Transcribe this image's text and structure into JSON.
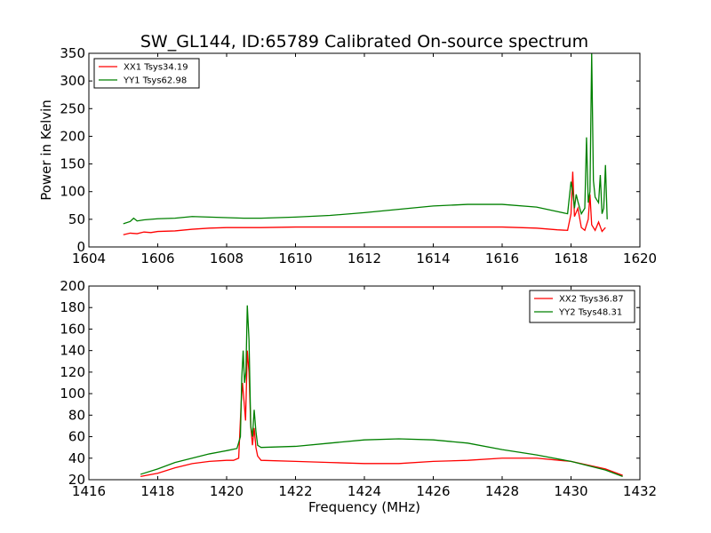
{
  "figure": {
    "title": "SW_GL144, ID:65789 Calibrated On-source spectrum",
    "xlabel": "Frequency (MHz)",
    "ylabel": "Power in Kelvin"
  },
  "chart_data": [
    {
      "type": "line",
      "title": "SW_GL144, ID:65789 Calibrated On-source spectrum",
      "xlabel": "",
      "ylabel": "Power in Kelvin",
      "xlim": [
        1604,
        1620
      ],
      "ylim": [
        0,
        350
      ],
      "xticks": [
        1604,
        1606,
        1608,
        1610,
        1612,
        1614,
        1616,
        1618,
        1620
      ],
      "yticks": [
        0,
        50,
        100,
        150,
        200,
        250,
        300,
        350
      ],
      "grid": false,
      "legend_position": "top-left",
      "series": [
        {
          "name": "XX1 Tsys34.19",
          "color": "#ff0000",
          "points": [
            [
              1605.0,
              22
            ],
            [
              1605.2,
              25
            ],
            [
              1605.4,
              24
            ],
            [
              1605.6,
              27
            ],
            [
              1605.8,
              26
            ],
            [
              1606.0,
              28
            ],
            [
              1606.5,
              29
            ],
            [
              1607.0,
              32
            ],
            [
              1607.5,
              34
            ],
            [
              1608.0,
              35
            ],
            [
              1609.0,
              35
            ],
            [
              1610.0,
              36
            ],
            [
              1611.0,
              36
            ],
            [
              1612.0,
              36
            ],
            [
              1613.0,
              36
            ],
            [
              1614.0,
              36
            ],
            [
              1615.0,
              36
            ],
            [
              1616.0,
              36
            ],
            [
              1617.0,
              34
            ],
            [
              1617.6,
              31
            ],
            [
              1617.9,
              30
            ],
            [
              1618.0,
              60
            ],
            [
              1618.05,
              136
            ],
            [
              1618.1,
              55
            ],
            [
              1618.2,
              70
            ],
            [
              1618.3,
              35
            ],
            [
              1618.4,
              30
            ],
            [
              1618.5,
              50
            ],
            [
              1618.55,
              95
            ],
            [
              1618.6,
              40
            ],
            [
              1618.7,
              30
            ],
            [
              1618.8,
              45
            ],
            [
              1618.9,
              28
            ],
            [
              1619.0,
              35
            ]
          ]
        },
        {
          "name": "YY1 Tsys62.98",
          "color": "#008000",
          "points": [
            [
              1605.0,
              42
            ],
            [
              1605.2,
              46
            ],
            [
              1605.3,
              52
            ],
            [
              1605.4,
              47
            ],
            [
              1605.6,
              49
            ],
            [
              1605.8,
              50
            ],
            [
              1606.0,
              51
            ],
            [
              1606.5,
              52
            ],
            [
              1607.0,
              55
            ],
            [
              1607.5,
              54
            ],
            [
              1608.0,
              53
            ],
            [
              1608.5,
              52
            ],
            [
              1609.0,
              52
            ],
            [
              1610.0,
              54
            ],
            [
              1611.0,
              57
            ],
            [
              1612.0,
              62
            ],
            [
              1613.0,
              68
            ],
            [
              1614.0,
              74
            ],
            [
              1615.0,
              77
            ],
            [
              1616.0,
              77
            ],
            [
              1617.0,
              72
            ],
            [
              1617.6,
              64
            ],
            [
              1617.9,
              60
            ],
            [
              1618.0,
              118
            ],
            [
              1618.05,
              100
            ],
            [
              1618.1,
              70
            ],
            [
              1618.15,
              95
            ],
            [
              1618.2,
              82
            ],
            [
              1618.3,
              60
            ],
            [
              1618.4,
              70
            ],
            [
              1618.45,
              198
            ],
            [
              1618.5,
              80
            ],
            [
              1618.55,
              100
            ],
            [
              1618.6,
              350
            ],
            [
              1618.65,
              120
            ],
            [
              1618.7,
              90
            ],
            [
              1618.8,
              80
            ],
            [
              1618.85,
              130
            ],
            [
              1618.9,
              60
            ],
            [
              1618.95,
              70
            ],
            [
              1619.0,
              148
            ],
            [
              1619.05,
              50
            ]
          ]
        }
      ]
    },
    {
      "type": "line",
      "title": "",
      "xlabel": "Frequency (MHz)",
      "ylabel": "",
      "xlim": [
        1416,
        1432
      ],
      "ylim": [
        20,
        200
      ],
      "xticks": [
        1416,
        1418,
        1420,
        1422,
        1424,
        1426,
        1428,
        1430,
        1432
      ],
      "yticks": [
        20,
        40,
        60,
        80,
        100,
        120,
        140,
        160,
        180,
        200
      ],
      "grid": false,
      "legend_position": "top-right",
      "series": [
        {
          "name": "XX2 Tsys36.87",
          "color": "#ff0000",
          "points": [
            [
              1417.5,
              23
            ],
            [
              1418.0,
              26
            ],
            [
              1418.5,
              31
            ],
            [
              1419.0,
              35
            ],
            [
              1419.5,
              37
            ],
            [
              1420.0,
              38
            ],
            [
              1420.2,
              38
            ],
            [
              1420.35,
              40
            ],
            [
              1420.42,
              90
            ],
            [
              1420.46,
              110
            ],
            [
              1420.5,
              95
            ],
            [
              1420.55,
              75
            ],
            [
              1420.6,
              140
            ],
            [
              1420.65,
              120
            ],
            [
              1420.7,
              70
            ],
            [
              1420.75,
              52
            ],
            [
              1420.8,
              68
            ],
            [
              1420.85,
              50
            ],
            [
              1420.9,
              42
            ],
            [
              1421.0,
              38
            ],
            [
              1422.0,
              37
            ],
            [
              1423.0,
              36
            ],
            [
              1424.0,
              35
            ],
            [
              1425.0,
              35
            ],
            [
              1426.0,
              37
            ],
            [
              1427.0,
              38
            ],
            [
              1428.0,
              40
            ],
            [
              1429.0,
              40
            ],
            [
              1430.0,
              37
            ],
            [
              1431.0,
              30
            ],
            [
              1431.5,
              24
            ]
          ]
        },
        {
          "name": "YY2 Tsys48.31",
          "color": "#008000",
          "points": [
            [
              1417.5,
              25
            ],
            [
              1418.0,
              30
            ],
            [
              1418.5,
              36
            ],
            [
              1419.0,
              40
            ],
            [
              1419.5,
              44
            ],
            [
              1420.0,
              47
            ],
            [
              1420.3,
              49
            ],
            [
              1420.4,
              60
            ],
            [
              1420.44,
              115
            ],
            [
              1420.48,
              140
            ],
            [
              1420.52,
              110
            ],
            [
              1420.56,
              120
            ],
            [
              1420.6,
              182
            ],
            [
              1420.65,
              150
            ],
            [
              1420.7,
              70
            ],
            [
              1420.75,
              60
            ],
            [
              1420.8,
              85
            ],
            [
              1420.85,
              65
            ],
            [
              1420.9,
              52
            ],
            [
              1421.0,
              50
            ],
            [
              1422.0,
              51
            ],
            [
              1423.0,
              54
            ],
            [
              1424.0,
              57
            ],
            [
              1425.0,
              58
            ],
            [
              1426.0,
              57
            ],
            [
              1427.0,
              54
            ],
            [
              1428.0,
              48
            ],
            [
              1429.0,
              43
            ],
            [
              1430.0,
              37
            ],
            [
              1431.0,
              29
            ],
            [
              1431.5,
              23
            ]
          ]
        }
      ]
    }
  ]
}
